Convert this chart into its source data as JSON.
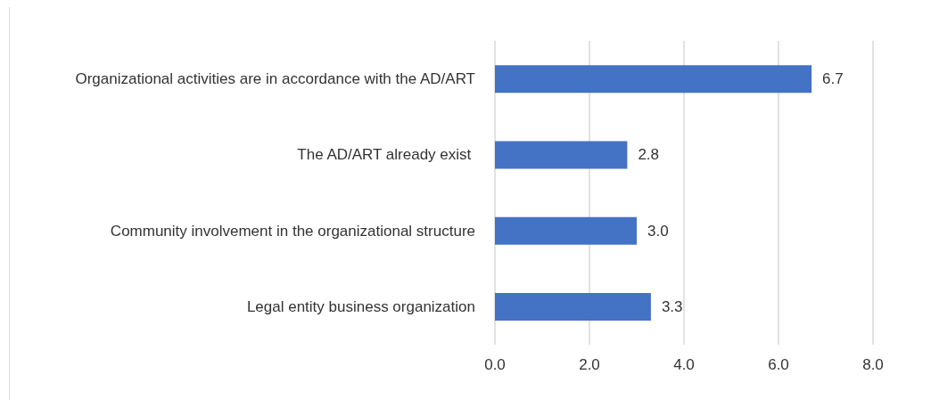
{
  "chart_data": {
    "type": "bar",
    "orientation": "horizontal",
    "categories": [
      "Organizational activities are in accordance with the AD/ART",
      "The AD/ART already exist ",
      "Community involvement in the organizational structure",
      "Legal entity business organization"
    ],
    "values": [
      6.7,
      2.8,
      3.0,
      3.3
    ],
    "value_labels": [
      "6.7",
      "2.8",
      "3.0",
      "3.3"
    ],
    "color": "#4472c4",
    "xlim": [
      0,
      8
    ],
    "xticks": [
      {
        "value": 0,
        "label": "0.0"
      },
      {
        "value": 2,
        "label": "2.0"
      },
      {
        "value": 4,
        "label": "4.0"
      },
      {
        "value": 6,
        "label": "6.0"
      },
      {
        "value": 8,
        "label": "8.0"
      }
    ],
    "grid": "x"
  }
}
